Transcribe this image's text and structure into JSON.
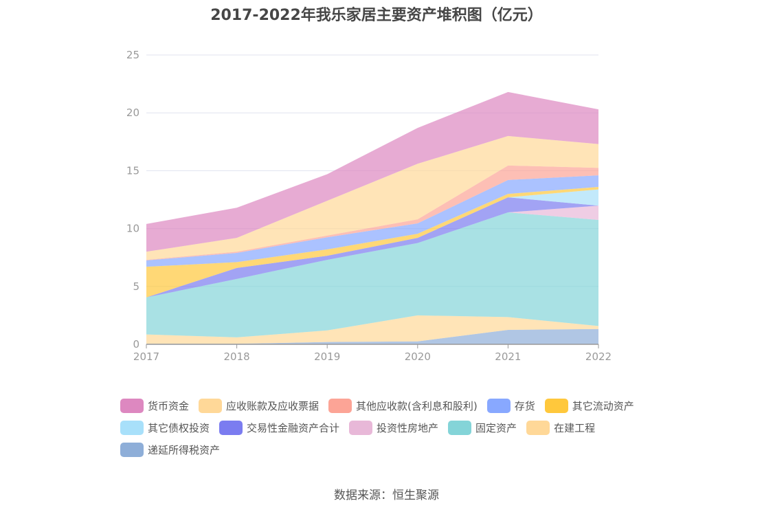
{
  "chart_data": {
    "type": "area",
    "stacked": true,
    "title": "2017-2022年我乐家居主要资产堆积图（亿元）",
    "x": [
      "2017",
      "2018",
      "2019",
      "2020",
      "2021",
      "2022"
    ],
    "ylim": [
      0,
      25
    ],
    "yticks": [
      0,
      5,
      10,
      15,
      20,
      25
    ],
    "grid": true,
    "legend_position": "bottom",
    "series": [
      {
        "name": "递延所得税资产",
        "color": "#8eaed8",
        "values": [
          0.05,
          0.05,
          0.2,
          0.25,
          1.25,
          1.32
        ]
      },
      {
        "name": "在建工程",
        "color": "#ffd898",
        "values": [
          0.8,
          0.55,
          1.0,
          2.25,
          1.1,
          0.26
        ]
      },
      {
        "name": "固定资产",
        "color": "#84d4d8",
        "values": [
          3.2,
          5.05,
          6.1,
          6.25,
          9.05,
          9.17
        ]
      },
      {
        "name": "投资性房地产",
        "color": "#e8b8d8",
        "values": [
          0,
          0,
          0,
          0,
          0,
          1.23
        ]
      },
      {
        "name": "交易性金融资产合计",
        "color": "#7b7cf0",
        "values": [
          0,
          0.95,
          0.35,
          0.45,
          1.3,
          0
        ]
      },
      {
        "name": "其它债权投资",
        "color": "#a8e0fa",
        "values": [
          0,
          0,
          0,
          0,
          0,
          1.4
        ]
      },
      {
        "name": "其它流动资产",
        "color": "#ffc83c",
        "values": [
          2.65,
          0.5,
          0.55,
          0.35,
          0.3,
          0.22
        ]
      },
      {
        "name": "存货",
        "color": "#88a8ff",
        "values": [
          0.55,
          0.8,
          1.05,
          0.9,
          1.2,
          1.0
        ]
      },
      {
        "name": "其他应收款(含利息和股利)",
        "color": "#fca496",
        "values": [
          0.05,
          0.1,
          0.15,
          0.35,
          1.25,
          0.65
        ]
      },
      {
        "name": "应收账款及应收票据",
        "color": "#ffd898",
        "values": [
          0.7,
          1.2,
          3.0,
          4.8,
          2.55,
          2.05
        ]
      },
      {
        "name": "货币资金",
        "color": "#dd88c0",
        "values": [
          2.4,
          2.6,
          2.3,
          3.1,
          3.8,
          3.0
        ]
      }
    ],
    "legend_order": [
      "货币资金",
      "应收账款及应收票据",
      "其他应收款(含利息和股利)",
      "存货",
      "其它流动资产",
      "其它债权投资",
      "交易性金融资产合计",
      "投资性房地产",
      "固定资产",
      "在建工程",
      "递延所得税资产"
    ]
  },
  "source": "数据来源：恒生聚源"
}
